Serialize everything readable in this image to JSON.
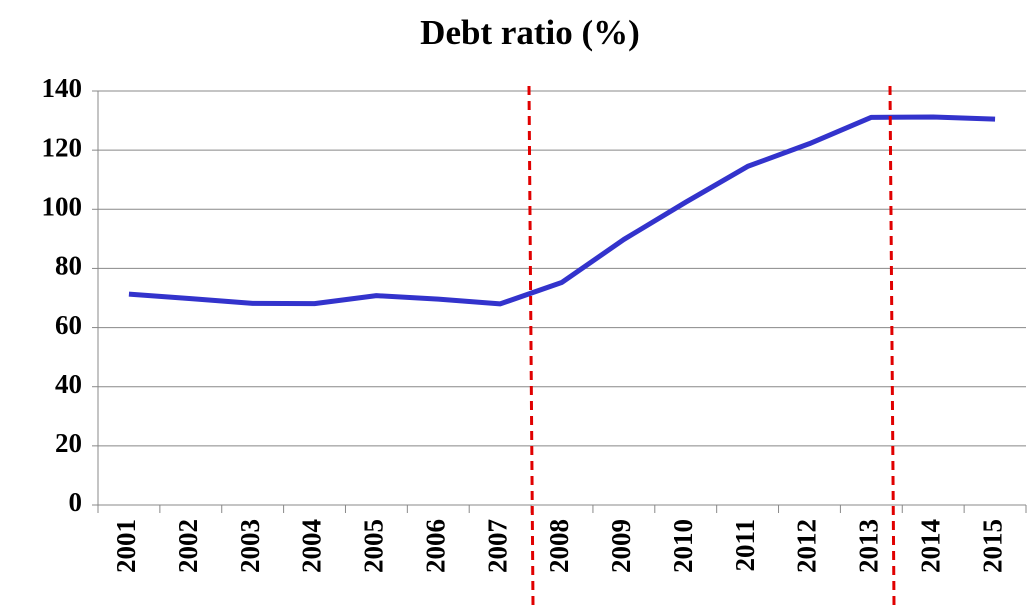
{
  "chart_data": {
    "type": "line",
    "title": "Debt ratio (%)",
    "categories": [
      "2001",
      "2002",
      "2003",
      "2004",
      "2005",
      "2006",
      "2007",
      "2008",
      "2009",
      "2010",
      "2011",
      "2012",
      "2013",
      "2014",
      "2015"
    ],
    "values": [
      71.3,
      69.8,
      68.2,
      68.1,
      70.8,
      69.6,
      68.0,
      75.3,
      89.8,
      102.4,
      114.5,
      122.2,
      131.1,
      131.2,
      130.5
    ],
    "color": "#3333cc",
    "ylim": [
      0,
      140
    ],
    "yticks": [
      0,
      20,
      40,
      60,
      80,
      100,
      120,
      140
    ],
    "grid": true
  }
}
